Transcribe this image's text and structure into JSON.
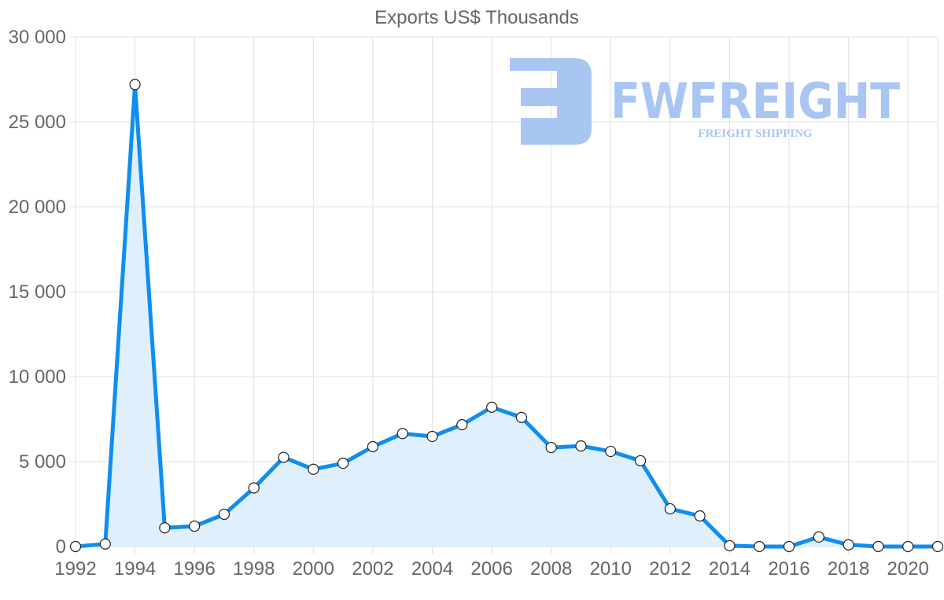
{
  "chart_data": {
    "type": "area",
    "title": "Exports US$ Thousands",
    "xlabel": "",
    "ylabel": "",
    "x": [
      1992,
      1993,
      1994,
      1995,
      1996,
      1997,
      1998,
      1999,
      2000,
      2001,
      2002,
      2003,
      2004,
      2005,
      2006,
      2007,
      2008,
      2009,
      2010,
      2011,
      2012,
      2013,
      2014,
      2015,
      2016,
      2017,
      2018,
      2019,
      2020,
      2021
    ],
    "series": [
      {
        "name": "Exports US$ Thousands",
        "values": [
          0,
          150,
          27200,
          1100,
          1200,
          1900,
          3450,
          5250,
          4550,
          4900,
          5880,
          6650,
          6480,
          7170,
          8200,
          7600,
          5830,
          5920,
          5600,
          5050,
          2220,
          1800,
          50,
          0,
          0,
          560,
          100,
          0,
          0,
          0
        ]
      }
    ],
    "x_tick_labels": [
      "1992",
      "1994",
      "1996",
      "1998",
      "2000",
      "2002",
      "2004",
      "2006",
      "2008",
      "2010",
      "2012",
      "2014",
      "2016",
      "2018",
      "2020"
    ],
    "y_tick_labels": [
      "0",
      "5 000",
      "10 000",
      "15 000",
      "20 000",
      "25 000",
      "30 000"
    ],
    "ylim": [
      0,
      30000
    ],
    "grid": true,
    "legend": "none",
    "colors": {
      "line": "#0f8ef0",
      "fill": "#d9ecfc",
      "marker_fill": "#ffffff",
      "marker_stroke": "#222222"
    }
  },
  "watermark": {
    "brand": "FWFREIGHT",
    "tagline": "FREIGHT SHIPPING",
    "color": "#a9c5f2"
  }
}
